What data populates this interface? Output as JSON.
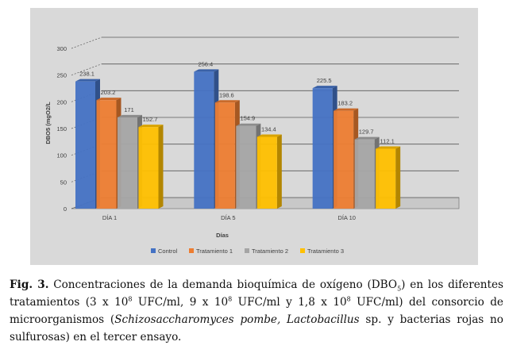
{
  "chart_data": {
    "type": "bar",
    "categories": [
      "DÍA 1",
      "DÍA 5",
      "DÍA 10"
    ],
    "series": [
      {
        "name": "Control",
        "values": [
          238.1,
          256.4,
          225.5
        ],
        "color": "#4472c4"
      },
      {
        "name": "Tratamiento 1",
        "values": [
          203.2,
          198.6,
          183.2
        ],
        "color": "#ed7d31"
      },
      {
        "name": "Tratamiento 2",
        "values": [
          171,
          154.9,
          129.7
        ],
        "color": "#a5a5a5"
      },
      {
        "name": "Tratamiento 3",
        "values": [
          152.7,
          134.4,
          112.1
        ],
        "color": "#ffc000"
      }
    ],
    "value_labels": [
      [
        "238.1",
        "256.4",
        "225.5"
      ],
      [
        "203.2",
        "198.6",
        "183.2"
      ],
      [
        "171",
        "154.9",
        "129.7"
      ],
      [
        "152.7",
        "134.4",
        "112.1"
      ]
    ],
    "ylabel": "DBO5 (mgO2/L",
    "xlabel": "Días",
    "ylim": [
      0,
      300
    ],
    "yticks": [
      0,
      50,
      100,
      150,
      200,
      250,
      300
    ],
    "grid": true,
    "three_d": true,
    "legend_position": "bottom"
  },
  "caption": {
    "label": "Fig. 3.",
    "t1": " Concentraciones de la demanda bioquímica de oxígeno (DBO",
    "t1_sub": "5",
    "t2": ") en los diferentes tratamientos (3 x 10",
    "sup1": "8",
    "t3": " UFC/ml, 9 x 10",
    "sup2": "8",
    "t4": " UFC/ml y 1,8 x 10",
    "sup3": "8",
    "t5": " UFC/ml) del consorcio de microorganismos (",
    "italic1": "Schizosaccharomyces pombe, Lactobacillus",
    "t6": " sp. y bacterias rojas no sulfurosas) en el tercer ensayo."
  }
}
